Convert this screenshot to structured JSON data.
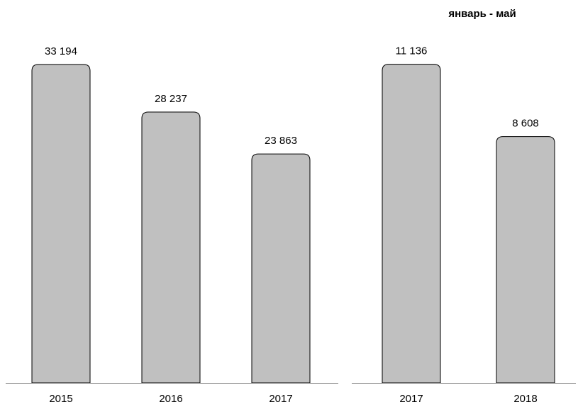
{
  "chart_data": [
    {
      "type": "bar",
      "title": "",
      "categories": [
        "2015",
        "2016",
        "2017"
      ],
      "values": [
        33194,
        28237,
        23863
      ],
      "value_labels": [
        "33 194",
        "28 237",
        "23 863"
      ],
      "ylim": [
        0,
        34000
      ],
      "grid": false,
      "colors": {
        "bar": "#c0c0c0",
        "stroke": "#000000"
      }
    },
    {
      "type": "bar",
      "title": "январь - май",
      "categories": [
        "2017",
        "2018"
      ],
      "values": [
        11136,
        8608
      ],
      "value_labels": [
        "11 136",
        "8 608"
      ],
      "ylim": [
        0,
        11400
      ],
      "grid": false,
      "colors": {
        "bar": "#c0c0c0",
        "stroke": "#000000"
      }
    }
  ]
}
